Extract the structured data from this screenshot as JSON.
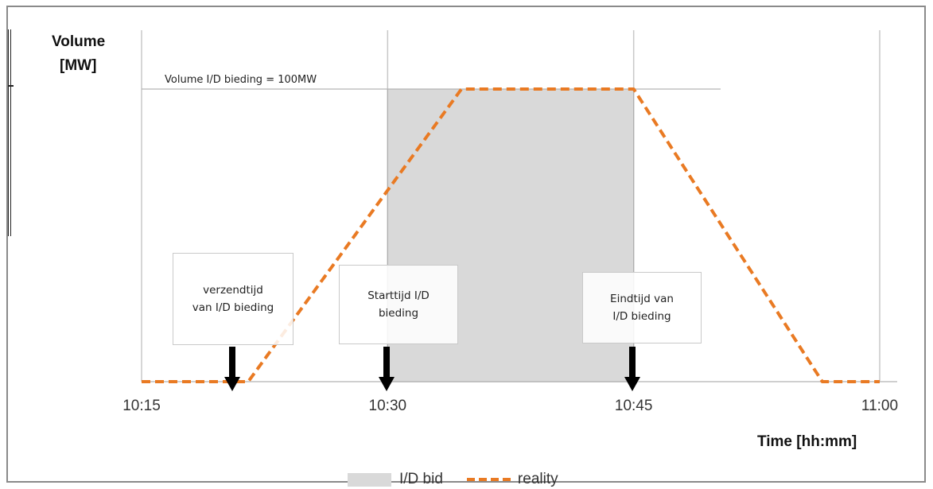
{
  "colors": {
    "shade": "#d9d9d9",
    "shade_edge": "#a6a6a6",
    "reality": "#e97a23",
    "grid": "#c8c8c8",
    "axis": "#bfbfbf",
    "arrow": "#000000"
  },
  "chart_data": {
    "type": "line",
    "ylabel_line1": "Volume",
    "ylabel_line2": "[MW]",
    "xlabel": "Time [hh:mm]",
    "x_ticks": [
      "10:15",
      "10:30",
      "10:45",
      "11:00"
    ],
    "x_tick_minutes": [
      0,
      15,
      30,
      45
    ],
    "xlim_minutes": [
      0,
      45
    ],
    "ylim": [
      0,
      100
    ],
    "grid": "vertical",
    "reference_line": {
      "label": "Volume I/D bieding = 100MW",
      "value": 100,
      "x_range_minutes": [
        0,
        35.3
      ]
    },
    "shaded_region": {
      "name": "I/D bid",
      "x_range_minutes": [
        15,
        30
      ],
      "value": 100
    },
    "series": [
      {
        "name": "reality",
        "style": "dashed",
        "x_minutes": [
          0,
          6.5,
          19.5,
          30,
          41.5,
          45
        ],
        "values": [
          0,
          0,
          100,
          100,
          0,
          0
        ]
      }
    ],
    "annotations": [
      {
        "id": "send",
        "text": "verzendtijd\nvan I/D bieding",
        "at_minute": 5.5
      },
      {
        "id": "start",
        "text": "Starttijd I/D\nbieding",
        "at_minute": 15
      },
      {
        "id": "end",
        "text": "Eindtijd van\nI/D bieding",
        "at_minute": 30
      }
    ],
    "legend": {
      "position": "bottom-center",
      "entries": [
        "I/D bid",
        "reality"
      ]
    }
  }
}
